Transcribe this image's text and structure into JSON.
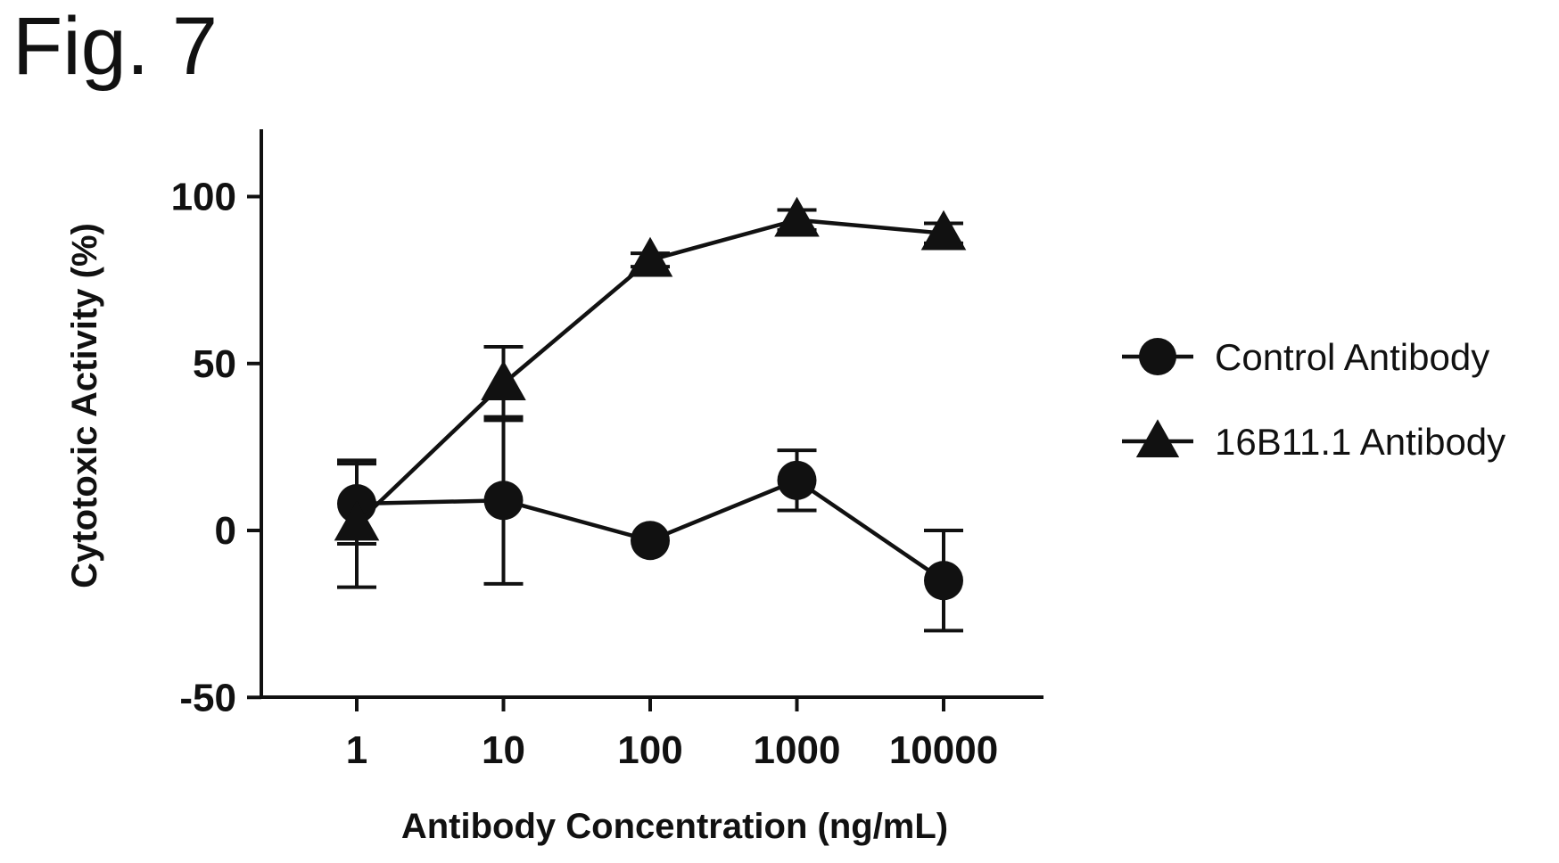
{
  "figure_label": "Fig. 7",
  "chart_data": {
    "type": "line",
    "xscale": "log",
    "x": [
      1,
      10,
      100,
      1000,
      10000
    ],
    "x_tick_labels": [
      "1",
      "10",
      "100",
      "1000",
      "10000"
    ],
    "ylim": [
      -50,
      120
    ],
    "y_ticks": [
      -50,
      0,
      50,
      100
    ],
    "y_tick_labels": [
      "-50",
      "0",
      "50",
      "100"
    ],
    "xlabel": "Antibody Concentration (ng/mL)",
    "ylabel": "Cytotoxic Activity (%)",
    "legend_position": "right",
    "series": [
      {
        "name": "Control Antibody",
        "marker": "circle",
        "values": [
          8,
          9,
          -3,
          15,
          -15
        ],
        "error": [
          12,
          25,
          0,
          9,
          15
        ]
      },
      {
        "name": "16B11.1 Antibody",
        "marker": "triangle",
        "values": [
          2,
          44,
          81,
          93,
          89
        ],
        "error": [
          19,
          11,
          2,
          3,
          3
        ]
      }
    ]
  }
}
